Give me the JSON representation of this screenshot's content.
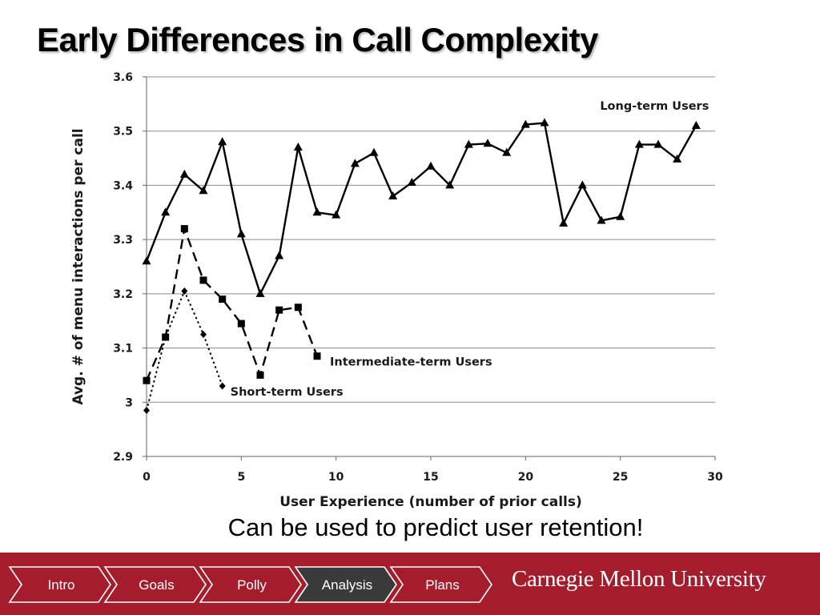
{
  "slide": {
    "title": "Early Differences in Call Complexity",
    "caption": "Can be used to predict user retention!"
  },
  "chart_data": {
    "type": "line",
    "title": "",
    "xlabel": "User Experience (number of prior calls)",
    "ylabel": "Avg. # of menu interactions per call",
    "xlim": [
      0,
      30
    ],
    "ylim": [
      2.9,
      3.6
    ],
    "xticks": [
      0,
      5,
      10,
      15,
      20,
      25,
      30
    ],
    "yticks": [
      2.9,
      3,
      3.1,
      3.2,
      3.3,
      3.4,
      3.5,
      3.6
    ],
    "ytick_labels": [
      "2.9",
      "3",
      "3.1",
      "3.2",
      "3.3",
      "3.4",
      "3.5",
      "3.6"
    ],
    "grid": "horizontal",
    "series": [
      {
        "name": "Long-term Users",
        "marker": "triangle",
        "line_style": "solid",
        "x": [
          0,
          1,
          2,
          3,
          4,
          5,
          6,
          7,
          8,
          9,
          10,
          11,
          12,
          13,
          14,
          15,
          16,
          17,
          18,
          19,
          20,
          21,
          22,
          23,
          24,
          25,
          26,
          27,
          28,
          29
        ],
        "y": [
          3.26,
          3.35,
          3.42,
          3.39,
          3.48,
          3.31,
          3.2,
          3.27,
          3.47,
          3.35,
          3.345,
          3.44,
          3.46,
          3.38,
          3.405,
          3.435,
          3.4,
          3.475,
          3.477,
          3.46,
          3.512,
          3.515,
          3.33,
          3.4,
          3.335,
          3.342,
          3.475,
          3.475,
          3.448,
          3.51
        ]
      },
      {
        "name": "Intermediate-term Users",
        "marker": "square",
        "line_style": "dashed",
        "x": [
          0,
          1,
          2,
          3,
          4,
          5,
          6,
          7,
          8,
          9
        ],
        "y": [
          3.04,
          3.12,
          3.32,
          3.225,
          3.19,
          3.145,
          3.05,
          3.17,
          3.175,
          3.085
        ]
      },
      {
        "name": "Short-term Users",
        "marker": "diamond",
        "line_style": "dotted",
        "x": [
          0,
          1,
          2,
          3,
          4
        ],
        "y": [
          2.985,
          3.12,
          3.205,
          3.125,
          3.03
        ]
      }
    ]
  },
  "nav": {
    "items": [
      {
        "label": "Intro",
        "active": false
      },
      {
        "label": "Goals",
        "active": false
      },
      {
        "label": "Polly",
        "active": false
      },
      {
        "label": "Analysis",
        "active": true
      },
      {
        "label": "Plans",
        "active": false
      }
    ],
    "university": "Carnegie Mellon University"
  },
  "colors": {
    "footer": "#a51d2d",
    "active_tab": "#3a3a3a",
    "gridline": "#8c8c8c",
    "series_line": "#000000"
  }
}
